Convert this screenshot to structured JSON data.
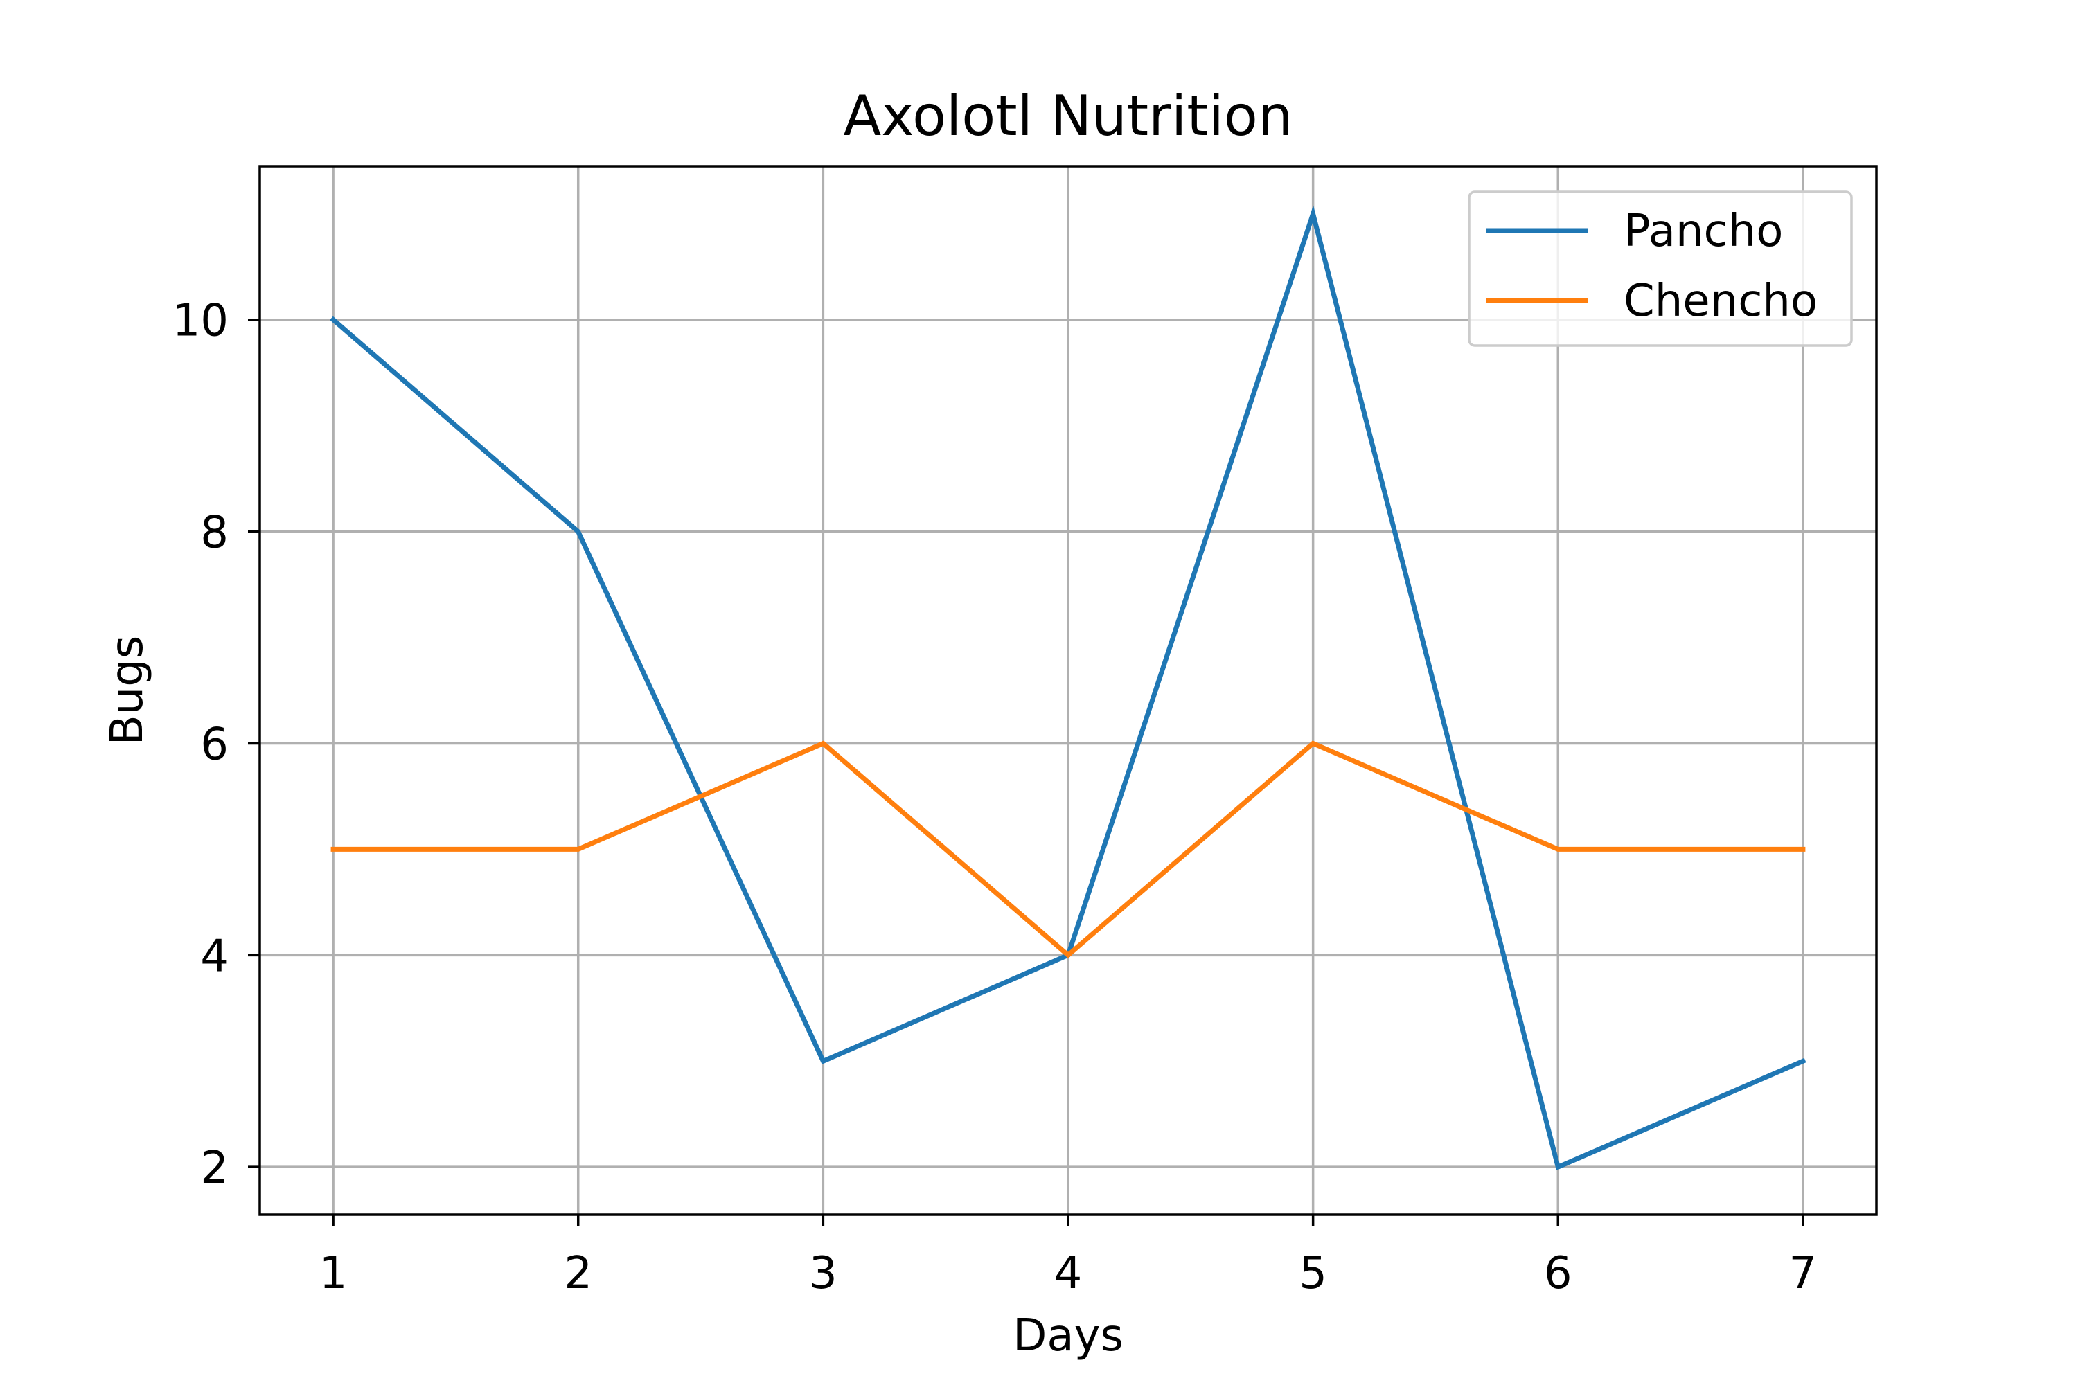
{
  "chart_data": {
    "type": "line",
    "title": "Axolotl Nutrition",
    "xlabel": "Days",
    "ylabel": "Bugs",
    "x": [
      1,
      2,
      3,
      4,
      5,
      6,
      7
    ],
    "xticks": [
      "1",
      "2",
      "3",
      "4",
      "5",
      "6",
      "7"
    ],
    "yticks": [
      "2",
      "4",
      "6",
      "8",
      "10"
    ],
    "xlim": [
      0.7,
      7.3
    ],
    "ylim": [
      1.55,
      11.45
    ],
    "grid": true,
    "legend_position": "top-right",
    "series": [
      {
        "name": "Pancho",
        "color": "#1f77b4",
        "values": [
          10,
          8,
          3,
          4,
          11,
          2,
          3
        ]
      },
      {
        "name": "Chencho",
        "color": "#ff7f0e",
        "values": [
          5,
          5,
          6,
          4,
          6,
          5,
          5
        ]
      }
    ]
  }
}
